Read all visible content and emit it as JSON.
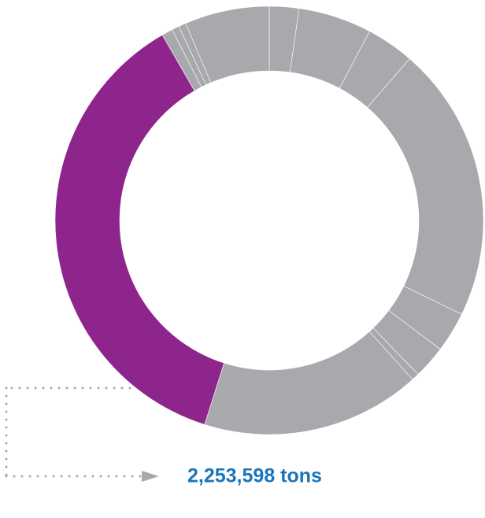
{
  "chart_data": {
    "type": "donut",
    "values": [
      136000,
      340000,
      221000,
      1277000,
      187000,
      153000,
      34000,
      1014000,
      2253598,
      51000,
      34000,
      34000,
      391000
    ],
    "value_labels": [
      null,
      null,
      null,
      null,
      null,
      null,
      null,
      null,
      "2,253,598 tons",
      null,
      null,
      null,
      null
    ],
    "colors": [
      "#a7a9ac",
      "#a7a9ac",
      "#a7a9ac",
      "#a7a9ac",
      "#a7a9ac",
      "#a7a9ac",
      "#a7a9ac",
      "#a7a9ac",
      "#8e258d",
      "#a7a9ac",
      "#a7a9ac",
      "#a7a9ac",
      "#a7a9ac"
    ],
    "label_color": "#1a75bb"
  }
}
